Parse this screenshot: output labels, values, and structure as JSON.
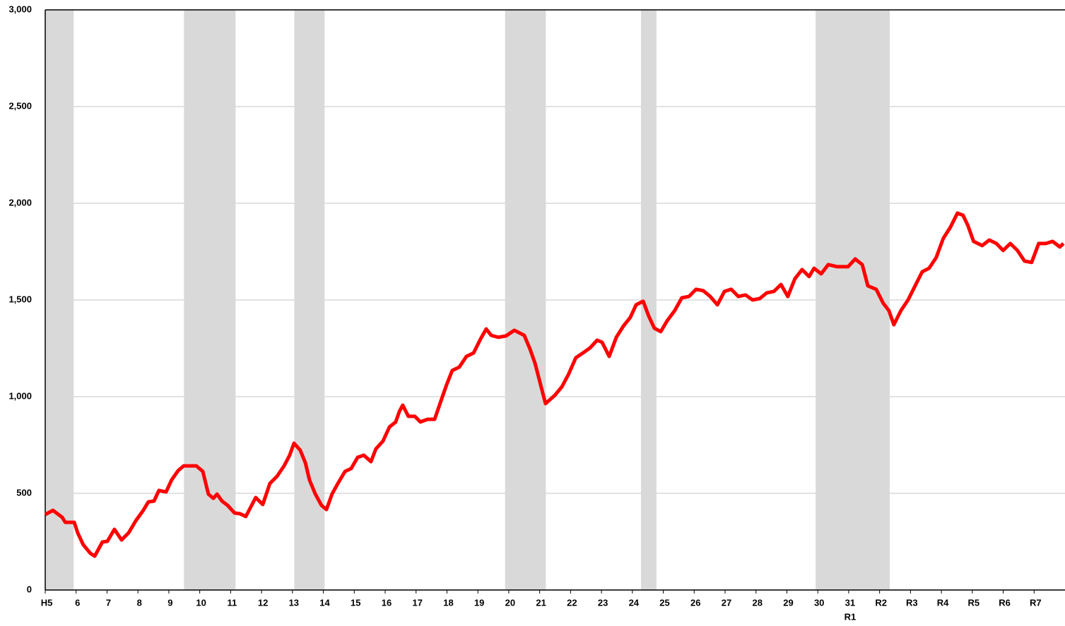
{
  "chart_data": {
    "type": "line",
    "xlim": [
      0,
      33
    ],
    "ylim": [
      0,
      3000
    ],
    "yticks": [
      0,
      {
        "value": 500,
        "label": "500"
      },
      {
        "value": 1000,
        "label": "1,000"
      },
      {
        "value": 1500,
        "label": "1,500"
      },
      {
        "value": 2000,
        "label": "2,000"
      },
      {
        "value": 2500,
        "label": "2,500"
      },
      {
        "value": 3000,
        "label": "3,000"
      }
    ],
    "xticks": [
      {
        "value": 0,
        "label": "H5"
      },
      {
        "value": 1,
        "label": "6"
      },
      {
        "value": 2,
        "label": "7"
      },
      {
        "value": 3,
        "label": "8"
      },
      {
        "value": 4,
        "label": "9"
      },
      {
        "value": 5,
        "label": "10"
      },
      {
        "value": 6,
        "label": "11"
      },
      {
        "value": 7,
        "label": "12"
      },
      {
        "value": 8,
        "label": "13"
      },
      {
        "value": 9,
        "label": "14"
      },
      {
        "value": 10,
        "label": "15"
      },
      {
        "value": 11,
        "label": "16"
      },
      {
        "value": 12,
        "label": "17"
      },
      {
        "value": 13,
        "label": "18"
      },
      {
        "value": 14,
        "label": "19"
      },
      {
        "value": 15,
        "label": "20"
      },
      {
        "value": 16,
        "label": "21"
      },
      {
        "value": 17,
        "label": "22"
      },
      {
        "value": 18,
        "label": "23"
      },
      {
        "value": 19,
        "label": "24"
      },
      {
        "value": 20,
        "label": "25"
      },
      {
        "value": 21,
        "label": "26"
      },
      {
        "value": 22,
        "label": "27"
      },
      {
        "value": 23,
        "label": "28"
      },
      {
        "value": 24,
        "label": "29"
      },
      {
        "value": 25,
        "label": "30"
      },
      {
        "value": 26,
        "label": "31",
        "label2": "R1"
      },
      {
        "value": 27,
        "label": "R2"
      },
      {
        "value": 28,
        "label": "R3"
      },
      {
        "value": 29,
        "label": "R4"
      },
      {
        "value": 30,
        "label": "R5"
      },
      {
        "value": 31,
        "label": "R6"
      },
      {
        "value": 32,
        "label": "R7"
      }
    ],
    "grid": true,
    "shaded_periods": [
      [
        0,
        0.92
      ],
      [
        4.49,
        6.16
      ],
      [
        8.06,
        9.04
      ],
      [
        14.88,
        16.2
      ],
      [
        19.28,
        19.78
      ],
      [
        24.93,
        27.33
      ]
    ],
    "shade_color": "#d9d9d9",
    "series": [
      {
        "color": "#ff0000",
        "x": [
          0,
          0.25,
          0.55,
          0.65,
          0.94,
          1.05,
          1.23,
          1.46,
          1.6,
          1.85,
          2.01,
          2.24,
          2.47,
          2.7,
          2.93,
          3.16,
          3.34,
          3.52,
          3.68,
          3.91,
          4.09,
          4.3,
          4.48,
          4.66,
          4.89,
          5.1,
          5.28,
          5.44,
          5.56,
          5.72,
          5.9,
          6.13,
          6.31,
          6.49,
          6.68,
          6.81,
          7.04,
          7.27,
          7.5,
          7.73,
          7.91,
          8.05,
          8.25,
          8.42,
          8.55,
          8.74,
          8.94,
          9.1,
          9.28,
          9.47,
          9.7,
          9.9,
          10.11,
          10.31,
          10.54,
          10.7,
          10.93,
          11.14,
          11.34,
          11.46,
          11.57,
          11.75,
          11.96,
          12.14,
          12.37,
          12.6,
          12.83,
          12.99,
          13.17,
          13.4,
          13.63,
          13.86,
          14.09,
          14.27,
          14.43,
          14.66,
          14.91,
          15.18,
          15.5,
          15.69,
          15.85,
          16.03,
          16.19,
          16.49,
          16.72,
          16.94,
          17.17,
          17.4,
          17.63,
          17.86,
          18.02,
          18.25,
          18.48,
          18.71,
          18.93,
          19.12,
          19.35,
          19.53,
          19.71,
          19.92,
          20.12,
          20.37,
          20.6,
          20.83,
          21.06,
          21.29,
          21.52,
          21.75,
          21.98,
          22.2,
          22.43,
          22.66,
          22.89,
          23.12,
          23.35,
          23.58,
          23.81,
          24.03,
          24.26,
          24.49,
          24.72,
          24.88,
          25.11,
          25.34,
          25.63,
          25.98,
          26.21,
          26.44,
          26.62,
          26.89,
          27.12,
          27.3,
          27.46,
          27.69,
          27.92,
          28.15,
          28.38,
          28.6,
          28.83,
          29.06,
          29.29,
          29.52,
          29.7,
          29.86,
          30.04,
          30.32,
          30.55,
          30.78,
          31.0,
          31.23,
          31.46,
          31.69,
          31.92,
          32.15,
          32.38,
          32.6,
          32.83,
          32.95
        ],
        "values": [
          390,
          412,
          376,
          350,
          350,
          296,
          234,
          190,
          175,
          248,
          252,
          314,
          259,
          296,
          358,
          409,
          456,
          460,
          515,
          507,
          569,
          617,
          642,
          642,
          642,
          613,
          496,
          474,
          496,
          460,
          438,
          398,
          394,
          380,
          438,
          478,
          442,
          551,
          588,
          642,
          697,
          759,
          723,
          657,
          569,
          496,
          438,
          416,
          496,
          551,
          613,
          628,
          686,
          697,
          664,
          730,
          770,
          843,
          869,
          923,
          956,
          898,
          898,
          869,
          883,
          883,
          989,
          1062,
          1135,
          1153,
          1208,
          1226,
          1299,
          1350,
          1317,
          1307,
          1314,
          1343,
          1317,
          1245,
          1172,
          1062,
          964,
          1007,
          1051,
          1117,
          1201,
          1226,
          1252,
          1292,
          1281,
          1208,
          1307,
          1365,
          1409,
          1475,
          1493,
          1416,
          1354,
          1336,
          1391,
          1445,
          1511,
          1518,
          1555,
          1548,
          1518,
          1475,
          1544,
          1555,
          1518,
          1526,
          1500,
          1507,
          1537,
          1544,
          1580,
          1518,
          1610,
          1657,
          1621,
          1664,
          1635,
          1683,
          1672,
          1672,
          1712,
          1683,
          1573,
          1555,
          1482,
          1445,
          1372,
          1445,
          1500,
          1573,
          1646,
          1664,
          1719,
          1818,
          1876,
          1949,
          1938,
          1884,
          1803,
          1781,
          1810,
          1792,
          1756,
          1792,
          1756,
          1701,
          1694,
          1792,
          1792,
          1803,
          1774,
          1792
        ]
      }
    ]
  }
}
